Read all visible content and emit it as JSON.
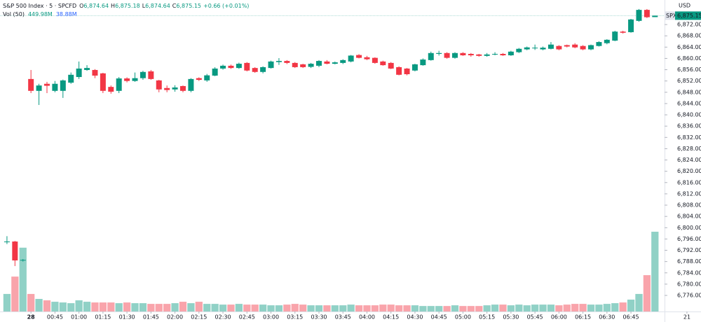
{
  "chart_data": {
    "type": "candlestick",
    "header": {
      "symbol": "S&P 500 Index · 5 · SPCFD",
      "o_label": "O",
      "open": "6,874.64",
      "h_label": "H",
      "high": "6,875.18",
      "l_label": "L",
      "low": "6,874.64",
      "c_label": "C",
      "close": "6,875.15",
      "change": "+0.66 (+0.01%)",
      "vol_label": "Vol (50)",
      "vol": "449.98M",
      "vol_ma": "38.88M",
      "currency": "USD",
      "tag": "SPX"
    },
    "up_color": "#089981",
    "down_color": "#f23645",
    "open": [
      6795.0,
      6795.1,
      6788.4,
      6852.7,
      6848.5,
      6851.0,
      6848.5,
      6848.5,
      6851.4,
      6853.4,
      6855.9,
      6855.9,
      6854.7,
      6849.9,
      6848.5,
      6852.9,
      6852.0,
      6853.0,
      6855.4,
      6852.2,
      6849.5,
      6849.0,
      6850.2,
      6848.5,
      6853.0,
      6852.2,
      6853.9,
      6856.4,
      6857.4,
      6856.6,
      6858.4,
      6856.6,
      6855.2,
      6856.6,
      6858.7,
      6859.1,
      6858.4,
      6857.9,
      6857.0,
      6857.4,
      6858.9,
      6858.1,
      6858.4,
      6858.9,
      6861.2,
      6860.4,
      6860.2,
      6858.9,
      6858.4,
      6856.9,
      6856.4,
      6855.7,
      6857.6,
      6859.4,
      6861.6,
      6861.9,
      6860.2,
      6861.9,
      6861.6,
      6861.4,
      6860.9,
      6861.4,
      6861.6,
      6861.1,
      6862.2,
      6863.2,
      6863.6,
      6863.2,
      6863.4,
      6864.4,
      6864.7,
      6864.9,
      6864.4,
      6863.2,
      6864.4,
      6865.4,
      6866.3,
      6869.5,
      6869.3,
      6873.3,
      6877.2,
      6874.64
    ],
    "high": [
      6797.0,
      6795.3,
      6788.9,
      6855.9,
      6851.0,
      6851.7,
      6852.0,
      6852.5,
      6855.0,
      6858.9,
      6857.6,
      6856.2,
      6854.9,
      6850.4,
      6853.4,
      6853.3,
      6855.0,
      6855.6,
      6855.9,
      6852.4,
      6850.4,
      6850.5,
      6850.4,
      6853.0,
      6853.3,
      6854.5,
      6856.9,
      6857.8,
      6857.8,
      6858.5,
      6858.7,
      6856.9,
      6857.2,
      6859.2,
      6860.1,
      6859.4,
      6858.7,
      6858.1,
      6858.4,
      6859.4,
      6859.4,
      6858.9,
      6859.7,
      6861.2,
      6861.5,
      6860.9,
      6860.4,
      6859.2,
      6858.7,
      6857.2,
      6856.6,
      6858.1,
      6860.0,
      6862.4,
      6862.7,
      6862.2,
      6862.2,
      6862.2,
      6861.9,
      6861.6,
      6861.9,
      6862.2,
      6861.9,
      6862.7,
      6863.7,
      6864.2,
      6864.9,
      6864.2,
      6865.8,
      6864.7,
      6864.9,
      6865.4,
      6864.7,
      6864.9,
      6866.1,
      6866.8,
      6869.8,
      6869.8,
      6874.0,
      6877.5,
      6877.5,
      6875.18
    ],
    "low": [
      6794.2,
      6786.4,
      6788.0,
      6847.7,
      6843.5,
      6847.7,
      6848.0,
      6846.0,
      6851.0,
      6852.7,
      6855.6,
      6853.0,
      6847.7,
      6847.5,
      6847.7,
      6851.5,
      6851.7,
      6852.4,
      6852.4,
      6848.0,
      6848.0,
      6848.2,
      6848.0,
      6848.0,
      6852.0,
      6851.7,
      6853.7,
      6856.0,
      6856.3,
      6856.3,
      6855.4,
      6854.9,
      6854.7,
      6856.4,
      6857.7,
      6858.0,
      6856.6,
      6856.6,
      6856.6,
      6856.9,
      6857.9,
      6857.9,
      6858.0,
      6858.6,
      6860.0,
      6859.4,
      6858.1,
      6857.4,
      6856.2,
      6854.0,
      6854.0,
      6855.4,
      6857.4,
      6859.2,
      6861.0,
      6859.9,
      6859.9,
      6860.9,
      6860.6,
      6860.6,
      6860.6,
      6861.1,
      6860.9,
      6860.9,
      6861.9,
      6862.9,
      6863.0,
      6862.9,
      6863.2,
      6862.9,
      6863.9,
      6863.6,
      6862.9,
      6862.9,
      6864.2,
      6865.0,
      6866.1,
      6868.8,
      6869.1,
      6873.0,
      6874.3,
      6874.64
    ],
    "close": [
      6795.1,
      6788.4,
      6788.6,
      6848.5,
      6850.4,
      6850.3,
      6851.0,
      6852.2,
      6854.2,
      6856.4,
      6856.6,
      6853.9,
      6848.5,
      6848.2,
      6852.9,
      6852.0,
      6853.0,
      6855.2,
      6852.7,
      6849.0,
      6848.8,
      6849.7,
      6848.5,
      6852.7,
      6852.4,
      6854.0,
      6856.4,
      6857.4,
      6856.6,
      6858.1,
      6855.7,
      6855.2,
      6856.9,
      6858.9,
      6859.1,
      6858.4,
      6856.9,
      6856.9,
      6858.1,
      6859.1,
      6858.1,
      6858.6,
      6859.4,
      6861.0,
      6860.2,
      6859.7,
      6858.4,
      6857.6,
      6856.4,
      6854.2,
      6854.4,
      6857.9,
      6859.6,
      6861.9,
      6861.9,
      6860.2,
      6861.9,
      6861.1,
      6861.1,
      6860.9,
      6861.4,
      6861.6,
      6861.1,
      6862.4,
      6863.4,
      6863.9,
      6863.8,
      6863.8,
      6864.9,
      6863.2,
      6864.2,
      6863.9,
      6863.2,
      6864.7,
      6865.8,
      6866.6,
      6869.5,
      6869.1,
      6873.8,
      6877.2,
      6874.6,
      6875.15
    ],
    "volume": [
      99,
      197,
      360,
      99,
      71,
      63,
      55,
      51,
      47,
      63,
      55,
      51,
      51,
      51,
      47,
      51,
      47,
      47,
      43,
      43,
      43,
      47,
      55,
      47,
      55,
      43,
      43,
      39,
      39,
      43,
      39,
      39,
      39,
      35,
      35,
      39,
      43,
      39,
      35,
      35,
      35,
      35,
      35,
      39,
      35,
      35,
      35,
      39,
      39,
      35,
      35,
      35,
      31,
      31,
      31,
      31,
      35,
      31,
      31,
      31,
      35,
      39,
      39,
      35,
      39,
      35,
      39,
      39,
      39,
      35,
      39,
      43,
      43,
      39,
      39,
      43,
      47,
      51,
      67,
      99,
      205,
      449.98
    ],
    "xlim": [
      -0.87,
      82.2
    ],
    "ylim": [
      6770.3,
      6880.7
    ],
    "vlim": [
      0,
      1757
    ],
    "yticks": [
      {
        "value": 6776,
        "label": "6,776.00"
      },
      {
        "value": 6780,
        "label": "6,780.00"
      },
      {
        "value": 6784,
        "label": "6,784.00"
      },
      {
        "value": 6788,
        "label": "6,788.00"
      },
      {
        "value": 6792,
        "label": "6,792.00"
      },
      {
        "value": 6796,
        "label": "6,796.00"
      },
      {
        "value": 6800,
        "label": "6,800.00"
      },
      {
        "value": 6804,
        "label": "6,804.00"
      },
      {
        "value": 6808,
        "label": "6,808.00"
      },
      {
        "value": 6812,
        "label": "6,812.00"
      },
      {
        "value": 6816,
        "label": "6,816.00"
      },
      {
        "value": 6820,
        "label": "6,820.00"
      },
      {
        "value": 6824,
        "label": "6,824.00"
      },
      {
        "value": 6828,
        "label": "6,828.00"
      },
      {
        "value": 6832,
        "label": "6,832.00"
      },
      {
        "value": 6836,
        "label": "6,836.00"
      },
      {
        "value": 6840,
        "label": "6,840.00"
      },
      {
        "value": 6844,
        "label": "6,844.00"
      },
      {
        "value": 6848,
        "label": "6,848.00"
      },
      {
        "value": 6852,
        "label": "6,852.00"
      },
      {
        "value": 6856,
        "label": "6,856.00"
      },
      {
        "value": 6860,
        "label": "6,860.00"
      },
      {
        "value": 6864,
        "label": "6,864.00"
      },
      {
        "value": 6868,
        "label": "6,868.00"
      },
      {
        "value": 6872,
        "label": "6,872.00"
      }
    ],
    "xticks": [
      {
        "value": 3,
        "label": "28"
      },
      {
        "value": 6,
        "label": "00:45"
      },
      {
        "value": 9,
        "label": "01:00"
      },
      {
        "value": 12,
        "label": "01:15"
      },
      {
        "value": 15,
        "label": "01:30"
      },
      {
        "value": 18,
        "label": "01:45"
      },
      {
        "value": 21,
        "label": "02:00"
      },
      {
        "value": 24,
        "label": "02:15"
      },
      {
        "value": 27,
        "label": "02:30"
      },
      {
        "value": 30,
        "label": "02:45"
      },
      {
        "value": 33,
        "label": "03:00"
      },
      {
        "value": 36,
        "label": "03:15"
      },
      {
        "value": 39,
        "label": "03:30"
      },
      {
        "value": 42,
        "label": "03:45"
      },
      {
        "value": 45,
        "label": "04:00"
      },
      {
        "value": 48,
        "label": "04:15"
      },
      {
        "value": 51,
        "label": "04:30"
      },
      {
        "value": 54,
        "label": "04:45"
      },
      {
        "value": 57,
        "label": "05:00"
      },
      {
        "value": 60,
        "label": "05:15"
      },
      {
        "value": 63,
        "label": "05:30"
      },
      {
        "value": 66,
        "label": "05:45"
      },
      {
        "value": 69,
        "label": "06:00"
      },
      {
        "value": 72,
        "label": "06:15"
      },
      {
        "value": 75,
        "label": "06:30"
      },
      {
        "value": 78,
        "label": "06:45"
      },
      {
        "value": 85,
        "label": "21"
      }
    ]
  }
}
